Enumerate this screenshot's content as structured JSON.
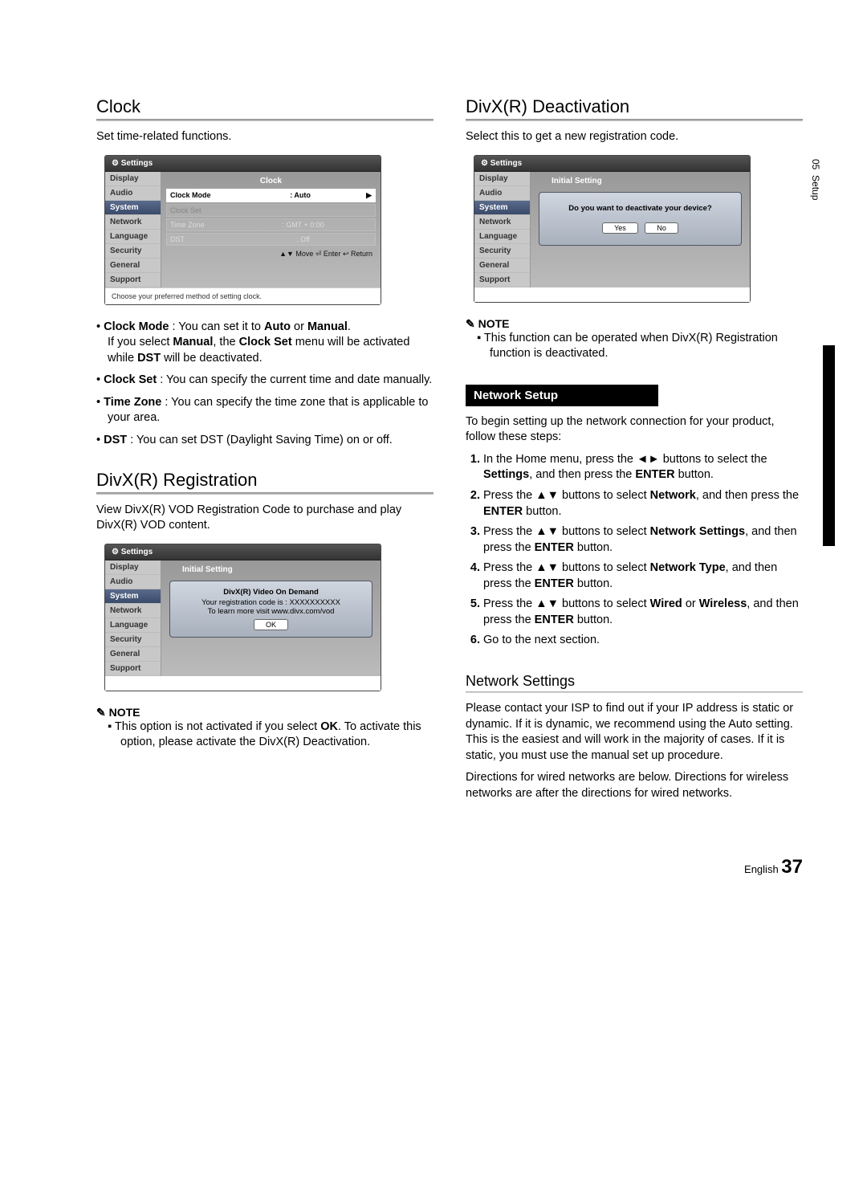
{
  "sidebar": {
    "chapter": "05",
    "title": "Setup"
  },
  "left": {
    "clock": {
      "heading": "Clock",
      "intro": "Set time-related functions.",
      "tv": {
        "header": "Settings",
        "side": [
          "Display",
          "Audio",
          "System",
          "Network",
          "Language",
          "Security",
          "General",
          "Support"
        ],
        "side_sel_index": 2,
        "panel_title": "Clock",
        "rows": [
          {
            "k": "Clock Mode",
            "v": ": Auto",
            "hl": true,
            "arrow": "▶"
          },
          {
            "k": "Clock Set",
            "v": "",
            "dim": true
          },
          {
            "k": "Time Zone",
            "v": ": GMT + 0:00"
          },
          {
            "k": "DST",
            "v": ": Off"
          }
        ],
        "controls": "▲▼ Move   ⏎ Enter   ↩ Return",
        "hint": "Choose your preferred method of setting clock."
      },
      "bullets": [
        {
          "pre": "Clock Mode",
          "rest": " : You can set it to ",
          "b2": "Auto",
          "rest2": " or ",
          "b3": "Manual",
          "tail": ".",
          "sub": "If you select Manual, the Clock Set menu will be activated while DST will be deactivated.",
          "sub_bolds": [
            "Manual",
            "Clock Set",
            "DST"
          ]
        },
        {
          "pre": "Clock Set",
          "rest": " : You can specify the current time and date manually."
        },
        {
          "pre": "Time Zone",
          "rest": " : You can specify the time zone that is applicable to your area."
        },
        {
          "pre": "DST",
          "rest": " : You can set DST (Daylight Saving Time) on or off."
        }
      ]
    },
    "divx_reg": {
      "heading": "DivX(R) Registration",
      "intro": "View DivX(R) VOD Registration Code to purchase and play DivX(R) VOD content.",
      "tv": {
        "header": "Settings",
        "side": [
          "Display",
          "Audio",
          "System",
          "Network",
          "Language",
          "Security",
          "General",
          "Support"
        ],
        "side_sel_index": 2,
        "panel_title": "Initial Setting",
        "dialog": {
          "title": "DivX(R) Video On Demand",
          "l1": "Your registration code is : XXXXXXXXXX",
          "l2": "To learn more visit www.divx.com/vod",
          "ok": "OK"
        }
      },
      "note_head": "NOTE",
      "note": "This option is not activated if you select OK. To activate this option, please activate the DivX(R) Deactivation.",
      "note_bold": "OK"
    }
  },
  "right": {
    "divx_deact": {
      "heading": "DivX(R) Deactivation",
      "intro": "Select this to get a new registration code.",
      "tv": {
        "header": "Settings",
        "side": [
          "Display",
          "Audio",
          "System",
          "Network",
          "Language",
          "Security",
          "General",
          "Support"
        ],
        "side_sel_index": 2,
        "panel_title": "Initial Setting",
        "dialog": {
          "q": "Do you want to deactivate your device?",
          "yes": "Yes",
          "no": "No"
        }
      },
      "note_head": "NOTE",
      "note": "This function can be operated when DivX(R) Registration function is deactivated."
    },
    "netsetup": {
      "banner": "Network Setup",
      "intro": "To begin setting up the network connection for your product, follow these steps:",
      "steps": [
        {
          "t": "In the Home menu, press the ◄► buttons to select the ",
          "b": "Settings",
          "t2": ", and then press the ",
          "b2": "ENTER",
          "t3": " button."
        },
        {
          "t": "Press the ▲▼ buttons to select ",
          "b": "Network",
          "t2": ", and then press the ",
          "b2": "ENTER",
          "t3": " button."
        },
        {
          "t": "Press the ▲▼ buttons to select ",
          "b": "Network Settings",
          "t2": ", and then press the ",
          "b2": "ENTER",
          "t3": " button."
        },
        {
          "t": "Press the ▲▼ buttons to select ",
          "b": "Network Type",
          "t2": ", and then press the ",
          "b2": "ENTER",
          "t3": " button."
        },
        {
          "t": "Press the ▲▼ buttons to select ",
          "b": "Wired",
          "t2": " or ",
          "b2": "Wireless",
          "t3": ", and then press the ",
          "b3": "ENTER",
          "t4": " button."
        },
        {
          "t": "Go to the next section."
        }
      ]
    },
    "netsettings": {
      "heading": "Network Settings",
      "p1": "Please contact your ISP to find out if your IP address is static or dynamic. If it is dynamic, we recommend using the Auto setting. This is the easiest and will work in the majority of cases. If it is static, you must use the manual set up procedure.",
      "p2": "Directions for wired networks are below. Directions for wireless networks are after the directions for wired networks."
    }
  },
  "footer": {
    "lang": "English",
    "page": "37"
  }
}
